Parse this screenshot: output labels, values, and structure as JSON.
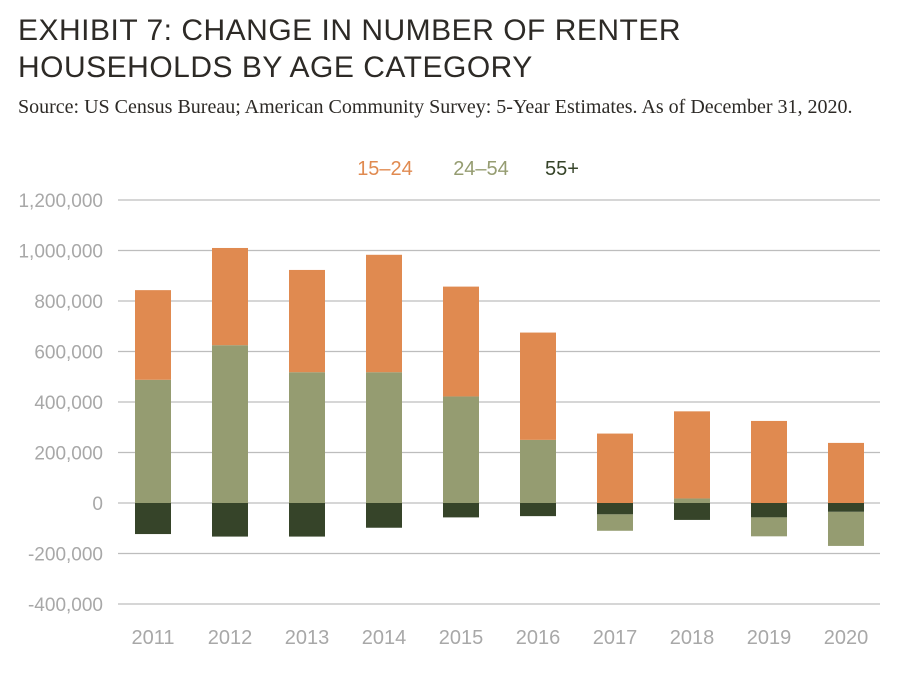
{
  "title": "EXHIBIT 7: CHANGE IN NUMBER OF RENTER HOUSEHOLDS BY AGE CATEGORY",
  "source": "Source: US Census Bureau; American Community Survey: 5-Year Estimates. As of December 31, 2020.",
  "colors": {
    "s15_24": "#e08a50",
    "s24_54": "#959c71",
    "s55": "#364429",
    "grid": "#bdbdbd",
    "tick": "#a8a8a8"
  },
  "chart_data": {
    "type": "bar",
    "stacked": true,
    "categories": [
      "2011",
      "2012",
      "2013",
      "2014",
      "2015",
      "2016",
      "2017",
      "2018",
      "2019",
      "2020"
    ],
    "series": [
      {
        "name": "15–24",
        "color": "#e08a50",
        "values": [
          355000,
          385000,
          405000,
          465000,
          435000,
          425000,
          275000,
          345000,
          325000,
          238000
        ]
      },
      {
        "name": "24–54",
        "color": "#959c71",
        "values": [
          488000,
          625000,
          518000,
          518000,
          422000,
          250000,
          -65000,
          18000,
          -75000,
          -135000
        ]
      },
      {
        "name": "55+",
        "color": "#364429",
        "values": [
          -123000,
          -133000,
          -133000,
          -98000,
          -57000,
          -52000,
          -45000,
          -67000,
          -57000,
          -35000
        ]
      }
    ],
    "ylim": [
      -400000,
      1200000
    ],
    "yticks": [
      1200000,
      1000000,
      800000,
      600000,
      400000,
      200000,
      0,
      -200000,
      -400000
    ],
    "ytick_labels": [
      "1,200,000",
      "1,000,000",
      "800,000",
      "600,000",
      "400,000",
      "200,000",
      "0",
      "-200,000",
      "-400,000"
    ],
    "grid": true,
    "legend": "top-center"
  }
}
